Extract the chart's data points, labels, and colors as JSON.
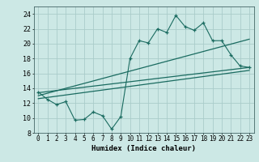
{
  "title": "",
  "xlabel": "Humidex (Indice chaleur)",
  "bg_color": "#cce8e5",
  "grid_color": "#aaccca",
  "line_color": "#1a6b60",
  "xlim": [
    -0.5,
    23.5
  ],
  "ylim": [
    8,
    25
  ],
  "xticks": [
    0,
    1,
    2,
    3,
    4,
    5,
    6,
    7,
    8,
    9,
    10,
    11,
    12,
    13,
    14,
    15,
    16,
    17,
    18,
    19,
    20,
    21,
    22,
    23
  ],
  "yticks": [
    8,
    10,
    12,
    14,
    16,
    18,
    20,
    22,
    24
  ],
  "scatter_x": [
    0,
    1,
    2,
    3,
    4,
    5,
    6,
    7,
    8,
    9,
    10,
    11,
    12,
    13,
    14,
    15,
    16,
    17,
    18,
    19,
    20,
    21,
    22,
    23
  ],
  "scatter_y": [
    13.5,
    12.5,
    11.8,
    12.2,
    9.7,
    9.8,
    10.8,
    10.3,
    8.5,
    10.2,
    18.0,
    20.4,
    20.1,
    22.0,
    21.5,
    23.8,
    22.3,
    21.8,
    22.8,
    20.4,
    20.4,
    18.5,
    17.0,
    16.8
  ],
  "reg_line1_x": [
    0,
    23
  ],
  "reg_line1_y": [
    12.6,
    16.4
  ],
  "reg_line2_x": [
    0,
    23
  ],
  "reg_line2_y": [
    13.0,
    20.6
  ],
  "reg_line3_x": [
    0,
    23
  ],
  "reg_line3_y": [
    13.4,
    16.8
  ]
}
